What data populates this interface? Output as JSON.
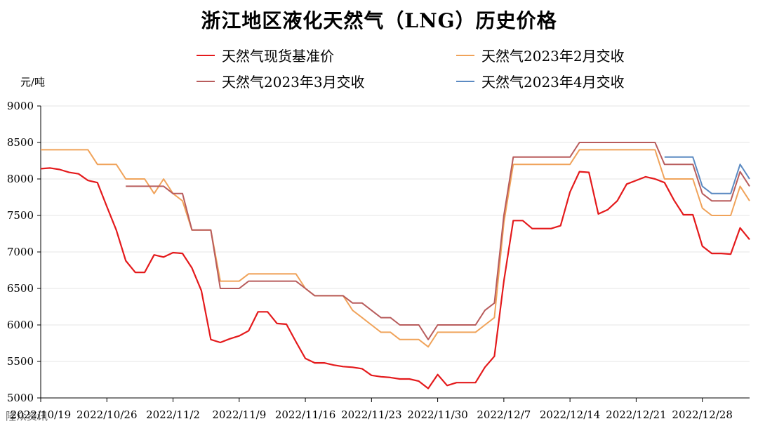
{
  "title": "浙江地区液化天然气（LNG）历史价格",
  "unit": "元/吨",
  "watermark": "隆众资讯",
  "chart_data": {
    "type": "line",
    "ylim": [
      5000,
      9000
    ],
    "yticks": [
      5000,
      5500,
      6000,
      6500,
      7000,
      7500,
      8000,
      8500,
      9000
    ],
    "x_start": "2022/10/19",
    "x_end": "2023/1/2",
    "x_tick_labels": [
      "2022/10/19",
      "2022/10/26",
      "2022/11/2",
      "2022/11/9",
      "2022/11/16",
      "2022/11/23",
      "2022/11/30",
      "2022/12/7",
      "2022/12/14",
      "2022/12/21",
      "2022/12/28"
    ],
    "grid": true,
    "legend_position": "top",
    "series": [
      {
        "name": "天然气现货基准价",
        "color": "#e41a1c",
        "points": [
          [
            "2022/10/19",
            8140
          ],
          [
            "2022/10/20",
            8150
          ],
          [
            "2022/10/21",
            8130
          ],
          [
            "2022/10/22",
            8090
          ],
          [
            "2022/10/23",
            8070
          ],
          [
            "2022/10/24",
            7980
          ],
          [
            "2022/10/25",
            7950
          ],
          [
            "2022/10/26",
            7620
          ],
          [
            "2022/10/27",
            7300
          ],
          [
            "2022/10/28",
            6880
          ],
          [
            "2022/10/29",
            6720
          ],
          [
            "2022/10/30",
            6720
          ],
          [
            "2022/10/31",
            6960
          ],
          [
            "2022/11/1",
            6930
          ],
          [
            "2022/11/2",
            6990
          ],
          [
            "2022/11/3",
            6980
          ],
          [
            "2022/11/4",
            6780
          ],
          [
            "2022/11/5",
            6470
          ],
          [
            "2022/11/6",
            5800
          ],
          [
            "2022/11/7",
            5760
          ],
          [
            "2022/11/8",
            5810
          ],
          [
            "2022/11/9",
            5850
          ],
          [
            "2022/11/10",
            5920
          ],
          [
            "2022/11/11",
            6180
          ],
          [
            "2022/11/12",
            6180
          ],
          [
            "2022/11/13",
            6020
          ],
          [
            "2022/11/14",
            6010
          ],
          [
            "2022/11/15",
            5770
          ],
          [
            "2022/11/16",
            5540
          ],
          [
            "2022/11/17",
            5480
          ],
          [
            "2022/11/18",
            5480
          ],
          [
            "2022/11/19",
            5450
          ],
          [
            "2022/11/20",
            5430
          ],
          [
            "2022/11/21",
            5420
          ],
          [
            "2022/11/22",
            5400
          ],
          [
            "2022/11/23",
            5310
          ],
          [
            "2022/11/24",
            5290
          ],
          [
            "2022/11/25",
            5280
          ],
          [
            "2022/11/26",
            5260
          ],
          [
            "2022/11/27",
            5260
          ],
          [
            "2022/11/28",
            5230
          ],
          [
            "2022/11/29",
            5130
          ],
          [
            "2022/11/30",
            5320
          ],
          [
            "2022/12/1",
            5170
          ],
          [
            "2022/12/2",
            5210
          ],
          [
            "2022/12/3",
            5210
          ],
          [
            "2022/12/4",
            5210
          ],
          [
            "2022/12/5",
            5420
          ],
          [
            "2022/12/6",
            5570
          ],
          [
            "2022/12/7",
            6600
          ],
          [
            "2022/12/8",
            7430
          ],
          [
            "2022/12/9",
            7430
          ],
          [
            "2022/12/10",
            7320
          ],
          [
            "2022/12/11",
            7320
          ],
          [
            "2022/12/12",
            7320
          ],
          [
            "2022/12/13",
            7360
          ],
          [
            "2022/12/14",
            7820
          ],
          [
            "2022/12/15",
            8100
          ],
          [
            "2022/12/16",
            8090
          ],
          [
            "2022/12/17",
            7520
          ],
          [
            "2022/12/18",
            7580
          ],
          [
            "2022/12/19",
            7700
          ],
          [
            "2022/12/20",
            7930
          ],
          [
            "2022/12/21",
            7980
          ],
          [
            "2022/12/22",
            8030
          ],
          [
            "2022/12/23",
            8000
          ],
          [
            "2022/12/24",
            7950
          ],
          [
            "2022/12/25",
            7710
          ],
          [
            "2022/12/26",
            7510
          ],
          [
            "2022/12/27",
            7510
          ],
          [
            "2022/12/28",
            7080
          ],
          [
            "2022/12/29",
            6980
          ],
          [
            "2022/12/30",
            6980
          ],
          [
            "2022/12/31",
            6970
          ],
          [
            "2023/1/1",
            7330
          ],
          [
            "2023/1/2",
            7170
          ]
        ]
      },
      {
        "name": "天然气2023年2月交收",
        "color": "#f0a35a",
        "points": [
          [
            "2022/10/19",
            8400
          ],
          [
            "2022/10/20",
            8400
          ],
          [
            "2022/10/21",
            8400
          ],
          [
            "2022/10/22",
            8400
          ],
          [
            "2022/10/23",
            8400
          ],
          [
            "2022/10/24",
            8400
          ],
          [
            "2022/10/25",
            8200
          ],
          [
            "2022/10/26",
            8200
          ],
          [
            "2022/10/27",
            8200
          ],
          [
            "2022/10/28",
            8000
          ],
          [
            "2022/10/29",
            8000
          ],
          [
            "2022/10/30",
            8000
          ],
          [
            "2022/10/31",
            7800
          ],
          [
            "2022/11/1",
            8000
          ],
          [
            "2022/11/2",
            7800
          ],
          [
            "2022/11/3",
            7700
          ],
          [
            "2022/11/4",
            7300
          ],
          [
            "2022/11/5",
            7300
          ],
          [
            "2022/11/6",
            7300
          ],
          [
            "2022/11/7",
            6600
          ],
          [
            "2022/11/8",
            6600
          ],
          [
            "2022/11/9",
            6600
          ],
          [
            "2022/11/10",
            6700
          ],
          [
            "2022/11/11",
            6700
          ],
          [
            "2022/11/12",
            6700
          ],
          [
            "2022/11/13",
            6700
          ],
          [
            "2022/11/14",
            6700
          ],
          [
            "2022/11/15",
            6700
          ],
          [
            "2022/11/16",
            6500
          ],
          [
            "2022/11/17",
            6400
          ],
          [
            "2022/11/18",
            6400
          ],
          [
            "2022/11/19",
            6400
          ],
          [
            "2022/11/20",
            6400
          ],
          [
            "2022/11/21",
            6200
          ],
          [
            "2022/11/22",
            6100
          ],
          [
            "2022/11/23",
            6000
          ],
          [
            "2022/11/24",
            5900
          ],
          [
            "2022/11/25",
            5900
          ],
          [
            "2022/11/26",
            5800
          ],
          [
            "2022/11/27",
            5800
          ],
          [
            "2022/11/28",
            5800
          ],
          [
            "2022/11/29",
            5700
          ],
          [
            "2022/11/30",
            5900
          ],
          [
            "2022/12/1",
            5900
          ],
          [
            "2022/12/2",
            5900
          ],
          [
            "2022/12/3",
            5900
          ],
          [
            "2022/12/4",
            5900
          ],
          [
            "2022/12/5",
            6000
          ],
          [
            "2022/12/6",
            6100
          ],
          [
            "2022/12/7",
            7400
          ],
          [
            "2022/12/8",
            8200
          ],
          [
            "2022/12/9",
            8200
          ],
          [
            "2022/12/10",
            8200
          ],
          [
            "2022/12/11",
            8200
          ],
          [
            "2022/12/12",
            8200
          ],
          [
            "2022/12/13",
            8200
          ],
          [
            "2022/12/14",
            8200
          ],
          [
            "2022/12/15",
            8400
          ],
          [
            "2022/12/16",
            8400
          ],
          [
            "2022/12/17",
            8400
          ],
          [
            "2022/12/18",
            8400
          ],
          [
            "2022/12/19",
            8400
          ],
          [
            "2022/12/20",
            8400
          ],
          [
            "2022/12/21",
            8400
          ],
          [
            "2022/12/22",
            8400
          ],
          [
            "2022/12/23",
            8400
          ],
          [
            "2022/12/24",
            8000
          ],
          [
            "2022/12/25",
            8000
          ],
          [
            "2022/12/26",
            8000
          ],
          [
            "2022/12/27",
            8000
          ],
          [
            "2022/12/28",
            7600
          ],
          [
            "2022/12/29",
            7500
          ],
          [
            "2022/12/30",
            7500
          ],
          [
            "2022/12/31",
            7500
          ],
          [
            "2023/1/1",
            7900
          ],
          [
            "2023/1/2",
            7700
          ]
        ]
      },
      {
        "name": "天然气2023年3月交收",
        "color": "#b85c5c",
        "points": [
          [
            "2022/10/28",
            7900
          ],
          [
            "2022/10/29",
            7900
          ],
          [
            "2022/10/30",
            7900
          ],
          [
            "2022/10/31",
            7900
          ],
          [
            "2022/11/1",
            7900
          ],
          [
            "2022/11/2",
            7800
          ],
          [
            "2022/11/3",
            7800
          ],
          [
            "2022/11/4",
            7300
          ],
          [
            "2022/11/5",
            7300
          ],
          [
            "2022/11/6",
            7300
          ],
          [
            "2022/11/7",
            6500
          ],
          [
            "2022/11/8",
            6500
          ],
          [
            "2022/11/9",
            6500
          ],
          [
            "2022/11/10",
            6600
          ],
          [
            "2022/11/11",
            6600
          ],
          [
            "2022/11/12",
            6600
          ],
          [
            "2022/11/13",
            6600
          ],
          [
            "2022/11/14",
            6600
          ],
          [
            "2022/11/15",
            6600
          ],
          [
            "2022/11/16",
            6500
          ],
          [
            "2022/11/17",
            6400
          ],
          [
            "2022/11/18",
            6400
          ],
          [
            "2022/11/19",
            6400
          ],
          [
            "2022/11/20",
            6400
          ],
          [
            "2022/11/21",
            6300
          ],
          [
            "2022/11/22",
            6300
          ],
          [
            "2022/11/23",
            6200
          ],
          [
            "2022/11/24",
            6100
          ],
          [
            "2022/11/25",
            6100
          ],
          [
            "2022/11/26",
            6000
          ],
          [
            "2022/11/27",
            6000
          ],
          [
            "2022/11/28",
            6000
          ],
          [
            "2022/11/29",
            5800
          ],
          [
            "2022/11/30",
            6000
          ],
          [
            "2022/12/1",
            6000
          ],
          [
            "2022/12/2",
            6000
          ],
          [
            "2022/12/3",
            6000
          ],
          [
            "2022/12/4",
            6000
          ],
          [
            "2022/12/5",
            6200
          ],
          [
            "2022/12/6",
            6300
          ],
          [
            "2022/12/7",
            7500
          ],
          [
            "2022/12/8",
            8300
          ],
          [
            "2022/12/9",
            8300
          ],
          [
            "2022/12/10",
            8300
          ],
          [
            "2022/12/11",
            8300
          ],
          [
            "2022/12/12",
            8300
          ],
          [
            "2022/12/13",
            8300
          ],
          [
            "2022/12/14",
            8300
          ],
          [
            "2022/12/15",
            8500
          ],
          [
            "2022/12/16",
            8500
          ],
          [
            "2022/12/17",
            8500
          ],
          [
            "2022/12/18",
            8500
          ],
          [
            "2022/12/19",
            8500
          ],
          [
            "2022/12/20",
            8500
          ],
          [
            "2022/12/21",
            8500
          ],
          [
            "2022/12/22",
            8500
          ],
          [
            "2022/12/23",
            8500
          ],
          [
            "2022/12/24",
            8200
          ],
          [
            "2022/12/25",
            8200
          ],
          [
            "2022/12/26",
            8200
          ],
          [
            "2022/12/27",
            8200
          ],
          [
            "2022/12/28",
            7800
          ],
          [
            "2022/12/29",
            7700
          ],
          [
            "2022/12/30",
            7700
          ],
          [
            "2022/12/31",
            7700
          ],
          [
            "2023/1/1",
            8100
          ],
          [
            "2023/1/2",
            7900
          ]
        ]
      },
      {
        "name": "天然气2023年4月交收",
        "color": "#5b8ac2",
        "points": [
          [
            "2022/12/24",
            8300
          ],
          [
            "2022/12/25",
            8300
          ],
          [
            "2022/12/26",
            8300
          ],
          [
            "2022/12/27",
            8300
          ],
          [
            "2022/12/28",
            7900
          ],
          [
            "2022/12/29",
            7800
          ],
          [
            "2022/12/30",
            7800
          ],
          [
            "2022/12/31",
            7800
          ],
          [
            "2023/1/1",
            8200
          ],
          [
            "2023/1/2",
            8000
          ]
        ]
      }
    ]
  }
}
